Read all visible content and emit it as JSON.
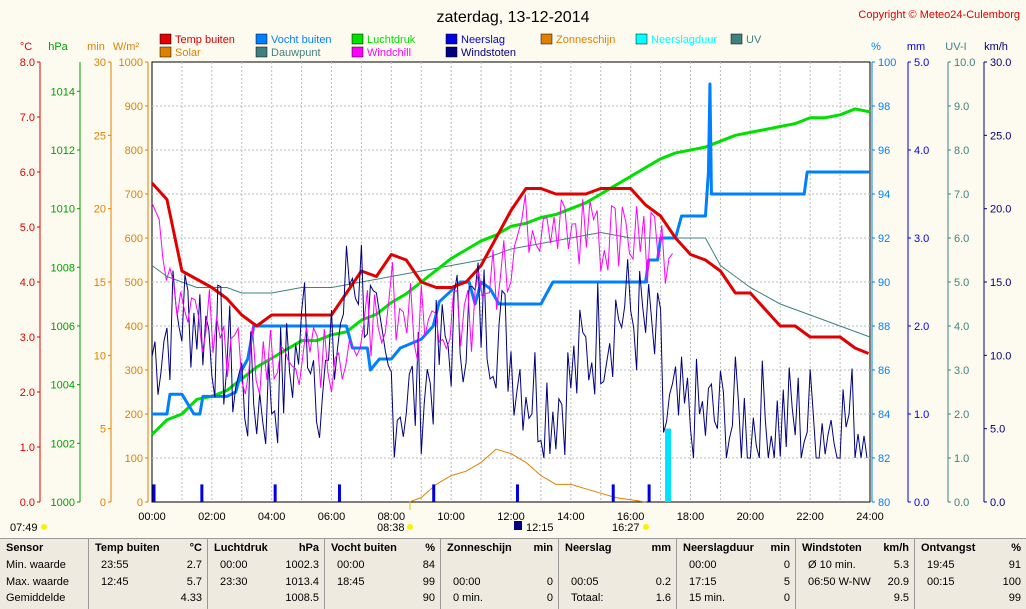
{
  "title": "zaterdag, 13-12-2014",
  "copyright": "Copyright © Meteo24-Culemborg",
  "legend": [
    {
      "label": "Temp buiten",
      "color": "#e00000"
    },
    {
      "label": "Solar",
      "color": "#e08000"
    },
    {
      "label": "Vocht buiten",
      "color": "#0080ff"
    },
    {
      "label": "Dauwpunt",
      "color": "#408080"
    },
    {
      "label": "Luchtdruk",
      "color": "#00e000"
    },
    {
      "label": "Windchill",
      "color": "#ff00ff"
    },
    {
      "label": "Neerslag",
      "color": "#0000e0"
    },
    {
      "label": "Windstoten",
      "color": "#000080"
    },
    {
      "label": "Zonneschijn",
      "color": "#e08000"
    },
    {
      "label": "Neerslagduur",
      "color": "#00ffff"
    },
    {
      "label": "UV",
      "color": "#408080"
    }
  ],
  "axis_units": {
    "temp": "°C",
    "press": "hPa",
    "min": "min",
    "solar": "W/m²",
    "hum": "%",
    "rain": "mm",
    "uv": "UV-I",
    "wind": "km/h"
  },
  "markers": {
    "sunrise": "07:49",
    "solar_noon": "12:15",
    "sunset": "16:27",
    "solar_start": "08:38"
  },
  "chart_data": {
    "type": "line",
    "x_hours": [
      0,
      24
    ],
    "x_ticks": [
      "00:00",
      "02:00",
      "04:00",
      "06:00",
      "08:00",
      "10:00",
      "12:00",
      "14:00",
      "16:00",
      "18:00",
      "20:00",
      "22:00",
      "24:00"
    ],
    "axes": {
      "temp": {
        "range": [
          0,
          8
        ],
        "ticks": [
          "0.0",
          "1.0",
          "2.0",
          "3.0",
          "4.0",
          "5.0",
          "6.0",
          "7.0",
          "8.0"
        ]
      },
      "press": {
        "range": [
          1000,
          1015
        ],
        "ticks": [
          "1000",
          "1002",
          "1004",
          "1006",
          "1008",
          "1010",
          "1012",
          "1014"
        ]
      },
      "min": {
        "range": [
          0,
          30
        ],
        "ticks": [
          "0",
          "5",
          "10",
          "15",
          "20",
          "25",
          "30"
        ]
      },
      "solar": {
        "range": [
          0,
          1000
        ],
        "ticks": [
          "0",
          "100",
          "200",
          "300",
          "400",
          "500",
          "600",
          "700",
          "800",
          "900",
          "1000"
        ]
      },
      "hum": {
        "range": [
          80,
          100
        ],
        "ticks": [
          "80",
          "82",
          "84",
          "86",
          "88",
          "90",
          "92",
          "94",
          "96",
          "98",
          "100"
        ]
      },
      "rain": {
        "range": [
          0,
          5
        ],
        "ticks": [
          "0.0",
          "1.0",
          "2.0",
          "3.0",
          "4.0",
          "5.0"
        ]
      },
      "uv": {
        "range": [
          0,
          10
        ],
        "ticks": [
          "0.0",
          "1.0",
          "2.0",
          "3.0",
          "4.0",
          "5.0",
          "6.0",
          "7.0",
          "8.0",
          "9.0",
          "10.0"
        ]
      },
      "wind": {
        "range": [
          0,
          30
        ],
        "ticks": [
          "0.0",
          "5.0",
          "10.0",
          "15.0",
          "20.0",
          "25.0",
          "30.0"
        ]
      }
    },
    "series": [
      {
        "name": "Temp buiten",
        "axis": "temp",
        "color": "#e00000",
        "points": [
          [
            0,
            5.8
          ],
          [
            0.5,
            5.5
          ],
          [
            1,
            4.2
          ],
          [
            2,
            3.9
          ],
          [
            2.5,
            3.7
          ],
          [
            3,
            3.4
          ],
          [
            3.5,
            3.2
          ],
          [
            4,
            3.4
          ],
          [
            5,
            3.4
          ],
          [
            6,
            3.4
          ],
          [
            6.5,
            3.8
          ],
          [
            7,
            4.2
          ],
          [
            7.5,
            4.1
          ],
          [
            8,
            4.5
          ],
          [
            8.5,
            4.4
          ],
          [
            9,
            4.0
          ],
          [
            9.5,
            3.9
          ],
          [
            10,
            3.9
          ],
          [
            10.5,
            4.0
          ],
          [
            11,
            4.3
          ],
          [
            11.5,
            4.8
          ],
          [
            12,
            5.3
          ],
          [
            12.5,
            5.7
          ],
          [
            13,
            5.7
          ],
          [
            13.5,
            5.6
          ],
          [
            14,
            5.6
          ],
          [
            14.5,
            5.6
          ],
          [
            15,
            5.7
          ],
          [
            15.5,
            5.7
          ],
          [
            16,
            5.7
          ],
          [
            16.5,
            5.4
          ],
          [
            17,
            5.2
          ],
          [
            17.5,
            4.8
          ],
          [
            18,
            4.5
          ],
          [
            18.5,
            4.4
          ],
          [
            19,
            4.2
          ],
          [
            19.5,
            3.8
          ],
          [
            20,
            3.8
          ],
          [
            20.5,
            3.5
          ],
          [
            21,
            3.2
          ],
          [
            21.5,
            3.2
          ],
          [
            22,
            3.0
          ],
          [
            22.5,
            3.0
          ],
          [
            23,
            3.0
          ],
          [
            23.5,
            2.8
          ],
          [
            23.95,
            2.7
          ]
        ]
      },
      {
        "name": "Vocht buiten",
        "axis": "hum",
        "color": "#0080ff",
        "points": [
          [
            0,
            84
          ],
          [
            0.5,
            84
          ],
          [
            0.6,
            84.9
          ],
          [
            1,
            84.9
          ],
          [
            1.4,
            84
          ],
          [
            1.6,
            84
          ],
          [
            1.7,
            84.8
          ],
          [
            2.5,
            84.8
          ],
          [
            2.8,
            85
          ],
          [
            3,
            86
          ],
          [
            3.2,
            86.5
          ],
          [
            3.4,
            88
          ],
          [
            6.5,
            88
          ],
          [
            6.7,
            87
          ],
          [
            7.2,
            87
          ],
          [
            7.3,
            86
          ],
          [
            7.6,
            86.5
          ],
          [
            8,
            86.5
          ],
          [
            8.3,
            87
          ],
          [
            9,
            87.4
          ],
          [
            9.4,
            88
          ],
          [
            9.6,
            89.1
          ],
          [
            10,
            89.6
          ],
          [
            10.3,
            90
          ],
          [
            10.6,
            90
          ],
          [
            10.8,
            89
          ],
          [
            11,
            90
          ],
          [
            11.3,
            89.7
          ],
          [
            11.6,
            89
          ],
          [
            12,
            89
          ],
          [
            12.3,
            89
          ],
          [
            12.6,
            89
          ],
          [
            13,
            89
          ],
          [
            13.4,
            90
          ],
          [
            14,
            90
          ],
          [
            15,
            90
          ],
          [
            16,
            90
          ],
          [
            16.5,
            90
          ],
          [
            16.6,
            91
          ],
          [
            16.9,
            91
          ],
          [
            17,
            92
          ],
          [
            17.5,
            92
          ],
          [
            17.7,
            93
          ],
          [
            18.5,
            93
          ],
          [
            18.6,
            95
          ],
          [
            18.65,
            99
          ],
          [
            18.7,
            94
          ],
          [
            19,
            94
          ],
          [
            19.5,
            94
          ],
          [
            20,
            94
          ],
          [
            21,
            94
          ],
          [
            21.8,
            94
          ],
          [
            21.9,
            95
          ],
          [
            22.5,
            95
          ],
          [
            23,
            95
          ],
          [
            24,
            95
          ]
        ]
      },
      {
        "name": "Luchtdruk",
        "axis": "press",
        "color": "#00e000",
        "points": [
          [
            0,
            1002.3
          ],
          [
            0.5,
            1002.8
          ],
          [
            1,
            1003.0
          ],
          [
            1.5,
            1003.5
          ],
          [
            2,
            1003.6
          ],
          [
            2.5,
            1003.8
          ],
          [
            3,
            1004.2
          ],
          [
            3.5,
            1004.6
          ],
          [
            4,
            1004.9
          ],
          [
            4.5,
            1005.2
          ],
          [
            5,
            1005.5
          ],
          [
            5.5,
            1005.5
          ],
          [
            6,
            1005.7
          ],
          [
            6.5,
            1005.8
          ],
          [
            7,
            1006.2
          ],
          [
            7.5,
            1006.4
          ],
          [
            8,
            1006.8
          ],
          [
            8.5,
            1007.1
          ],
          [
            9,
            1007.5
          ],
          [
            9.5,
            1007.9
          ],
          [
            10,
            1008.3
          ],
          [
            10.5,
            1008.6
          ],
          [
            11,
            1008.9
          ],
          [
            11.5,
            1009.1
          ],
          [
            12,
            1009.4
          ],
          [
            12.5,
            1009.5
          ],
          [
            13,
            1009.7
          ],
          [
            13.5,
            1009.8
          ],
          [
            14,
            1010.0
          ],
          [
            14.5,
            1010.2
          ],
          [
            15,
            1010.5
          ],
          [
            15.5,
            1010.8
          ],
          [
            16,
            1011.1
          ],
          [
            16.5,
            1011.4
          ],
          [
            17,
            1011.7
          ],
          [
            17.5,
            1011.9
          ],
          [
            18,
            1012.0
          ],
          [
            18.5,
            1012.1
          ],
          [
            19,
            1012.3
          ],
          [
            19.5,
            1012.5
          ],
          [
            20,
            1012.6
          ],
          [
            20.5,
            1012.7
          ],
          [
            21,
            1012.8
          ],
          [
            21.5,
            1012.9
          ],
          [
            22,
            1013.1
          ],
          [
            22.5,
            1013.1
          ],
          [
            23,
            1013.2
          ],
          [
            23.5,
            1013.4
          ],
          [
            24,
            1013.3
          ]
        ]
      },
      {
        "name": "Dauwpunt",
        "axis": "temp",
        "color": "#408080",
        "points": [
          [
            0,
            4.3
          ],
          [
            0.5,
            4.1
          ],
          [
            1,
            4.0
          ],
          [
            1.5,
            3.9
          ],
          [
            2,
            3.9
          ],
          [
            2.5,
            3.9
          ],
          [
            3,
            3.8
          ],
          [
            4,
            3.8
          ],
          [
            5,
            3.9
          ],
          [
            6,
            3.9
          ],
          [
            7,
            4.0
          ],
          [
            8,
            4.1
          ],
          [
            9,
            4.2
          ],
          [
            10,
            4.3
          ],
          [
            11,
            4.4
          ],
          [
            12,
            4.6
          ],
          [
            13,
            4.7
          ],
          [
            14,
            4.8
          ],
          [
            15,
            4.9
          ],
          [
            16,
            4.8
          ],
          [
            17,
            4.8
          ],
          [
            18,
            4.8
          ],
          [
            18.5,
            4.8
          ],
          [
            19,
            4.3
          ],
          [
            20,
            3.9
          ],
          [
            21,
            3.6
          ],
          [
            22,
            3.4
          ],
          [
            23,
            3.2
          ],
          [
            24,
            3.0
          ]
        ]
      },
      {
        "name": "Solar",
        "axis": "solar",
        "color": "#e08000",
        "points": [
          [
            8.6,
            0
          ],
          [
            9,
            10
          ],
          [
            9.5,
            40
          ],
          [
            10,
            60
          ],
          [
            10.5,
            70
          ],
          [
            11,
            90
          ],
          [
            11.5,
            120
          ],
          [
            12,
            110
          ],
          [
            12.5,
            90
          ],
          [
            13,
            60
          ],
          [
            13.5,
            40
          ],
          [
            14,
            40
          ],
          [
            14.5,
            30
          ],
          [
            15,
            20
          ],
          [
            15.5,
            10
          ],
          [
            16,
            5
          ],
          [
            16.5,
            0
          ]
        ]
      }
    ],
    "summary_columns": [
      {
        "name": "Sensor",
        "rows": [
          "Min. waarde",
          "Max. waarde",
          "Gemiddelde"
        ]
      },
      {
        "name": "Temp buiten",
        "unit": "°C",
        "rows": [
          [
            "23:55",
            "2.7"
          ],
          [
            "12:45",
            "5.7"
          ],
          [
            "",
            "4.33"
          ]
        ]
      },
      {
        "name": "Luchtdruk",
        "unit": "hPa",
        "rows": [
          [
            "00:00",
            "1002.3"
          ],
          [
            "23:30",
            "1013.4"
          ],
          [
            "",
            "1008.5"
          ]
        ]
      },
      {
        "name": "Vocht buiten",
        "unit": "%",
        "rows": [
          [
            "00:00",
            "84"
          ],
          [
            "18:45",
            "99"
          ],
          [
            "",
            "90"
          ]
        ]
      },
      {
        "name": "Zonneschijn",
        "unit": "min",
        "rows": [
          [
            "",
            ""
          ],
          [
            "00:00",
            "0"
          ],
          [
            "0 min.",
            "0"
          ]
        ]
      },
      {
        "name": "Neerslag",
        "unit": "mm",
        "rows": [
          [
            "",
            ""
          ],
          [
            "00:05",
            "0.2"
          ],
          [
            "Totaal:",
            "1.6"
          ]
        ]
      },
      {
        "name": "Neerslagduur",
        "unit": "min",
        "rows": [
          [
            "00:00",
            "0"
          ],
          [
            "17:15",
            "5"
          ],
          [
            "15 min.",
            "0"
          ]
        ]
      },
      {
        "name": "Windstoten",
        "unit": "km/h",
        "rows": [
          [
            "Ø 10 min.",
            "5.3"
          ],
          [
            "06:50  W-NW",
            "20.9"
          ],
          [
            "",
            "9.5"
          ]
        ]
      },
      {
        "name": "Ontvangst",
        "unit": "%",
        "rows": [
          [
            "19:45",
            "91"
          ],
          [
            "00:15",
            "100"
          ],
          [
            "",
            "99"
          ]
        ]
      }
    ]
  }
}
